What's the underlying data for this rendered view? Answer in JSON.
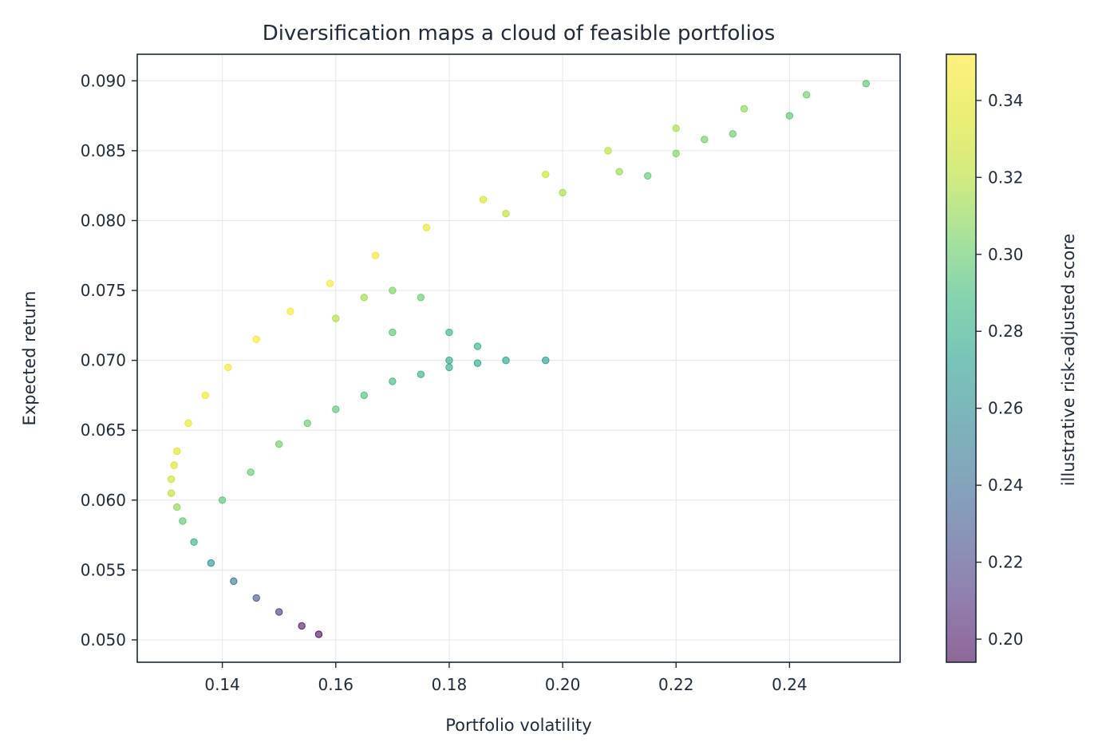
{
  "chart_data": {
    "type": "scatter",
    "title": "Diversification maps a cloud of feasible portfolios",
    "xlabel": "Portfolio volatility",
    "ylabel": "Expected return",
    "xlim": [
      0.125,
      0.2595
    ],
    "ylim": [
      0.0484,
      0.0919
    ],
    "xticks": [
      0.14,
      0.16,
      0.18,
      0.2,
      0.22,
      0.24
    ],
    "xtick_labels": [
      "0.14",
      "0.16",
      "0.18",
      "0.20",
      "0.22",
      "0.24"
    ],
    "yticks": [
      0.05,
      0.055,
      0.06,
      0.065,
      0.07,
      0.075,
      0.08,
      0.085,
      0.09
    ],
    "ytick_labels": [
      "0.050",
      "0.055",
      "0.060",
      "0.065",
      "0.070",
      "0.075",
      "0.080",
      "0.085",
      "0.090"
    ],
    "grid": true,
    "colormap": "viridis",
    "point_alpha": 0.6,
    "colorbar": {
      "label": "illustrative risk-adjusted score",
      "range": [
        0.194,
        0.352
      ],
      "ticks": [
        0.2,
        0.22,
        0.24,
        0.26,
        0.28,
        0.3,
        0.32,
        0.34
      ],
      "tick_labels": [
        "0.20",
        "0.22",
        "0.24",
        "0.26",
        "0.28",
        "0.30",
        "0.32",
        "0.34"
      ]
    },
    "frontier_minimum_variance": {
      "x": 0.131,
      "y": 0.0615
    },
    "frontier_upper_end": {
      "x": 0.2535,
      "y": 0.0898
    },
    "frontier_lower_end": {
      "x": 0.157,
      "y": 0.0504
    },
    "inner_cusp": {
      "x": 0.197,
      "y": 0.07
    },
    "series": [
      {
        "points": [
          [
            0.131,
            0.0615,
            0.33
          ],
          [
            0.1315,
            0.0625,
            0.333
          ],
          [
            0.132,
            0.0635,
            0.336
          ],
          [
            0.134,
            0.0655,
            0.34
          ],
          [
            0.137,
            0.0675,
            0.344
          ],
          [
            0.141,
            0.0695,
            0.347
          ],
          [
            0.146,
            0.0715,
            0.35
          ],
          [
            0.152,
            0.0735,
            0.351
          ],
          [
            0.159,
            0.0755,
            0.349
          ],
          [
            0.167,
            0.0775,
            0.346
          ],
          [
            0.176,
            0.0795,
            0.341
          ],
          [
            0.186,
            0.0815,
            0.334
          ],
          [
            0.197,
            0.0833,
            0.328
          ],
          [
            0.208,
            0.085,
            0.322
          ],
          [
            0.22,
            0.0866,
            0.316
          ],
          [
            0.232,
            0.088,
            0.309
          ],
          [
            0.243,
            0.089,
            0.302
          ],
          [
            0.2535,
            0.0898,
            0.296
          ],
          [
            0.131,
            0.0605,
            0.322
          ],
          [
            0.132,
            0.0595,
            0.31
          ],
          [
            0.133,
            0.0585,
            0.298
          ],
          [
            0.135,
            0.057,
            0.282
          ],
          [
            0.138,
            0.0555,
            0.262
          ],
          [
            0.142,
            0.0542,
            0.245
          ],
          [
            0.146,
            0.053,
            0.228
          ],
          [
            0.15,
            0.052,
            0.213
          ],
          [
            0.154,
            0.051,
            0.2
          ],
          [
            0.157,
            0.0504,
            0.194
          ],
          [
            0.14,
            0.06,
            0.296
          ],
          [
            0.145,
            0.062,
            0.3
          ],
          [
            0.15,
            0.064,
            0.302
          ],
          [
            0.155,
            0.0655,
            0.3
          ],
          [
            0.16,
            0.0665,
            0.296
          ],
          [
            0.165,
            0.0675,
            0.291
          ],
          [
            0.17,
            0.0685,
            0.287
          ],
          [
            0.175,
            0.069,
            0.282
          ],
          [
            0.18,
            0.0695,
            0.279
          ],
          [
            0.185,
            0.0698,
            0.276
          ],
          [
            0.19,
            0.07,
            0.274
          ],
          [
            0.197,
            0.07,
            0.27
          ],
          [
            0.17,
            0.072,
            0.296
          ],
          [
            0.18,
            0.072,
            0.284
          ],
          [
            0.185,
            0.071,
            0.281
          ],
          [
            0.18,
            0.07,
            0.279
          ],
          [
            0.175,
            0.0745,
            0.3
          ],
          [
            0.17,
            0.075,
            0.306
          ],
          [
            0.165,
            0.0745,
            0.314
          ],
          [
            0.16,
            0.073,
            0.318
          ],
          [
            0.19,
            0.0805,
            0.32
          ],
          [
            0.2,
            0.082,
            0.316
          ],
          [
            0.21,
            0.0835,
            0.312
          ],
          [
            0.22,
            0.0848,
            0.306
          ],
          [
            0.23,
            0.0862,
            0.3
          ],
          [
            0.24,
            0.0875,
            0.296
          ],
          [
            0.225,
            0.0858,
            0.302
          ],
          [
            0.215,
            0.0832,
            0.298
          ]
        ]
      }
    ]
  }
}
